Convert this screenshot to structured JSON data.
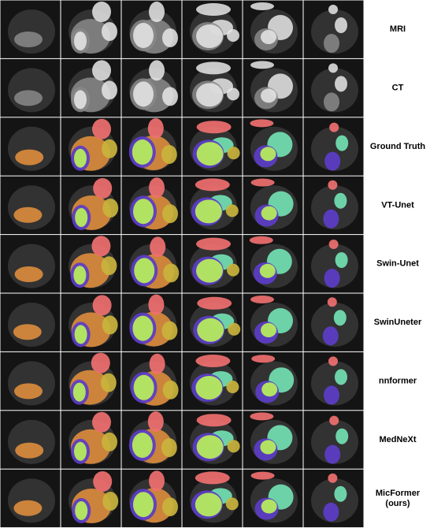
{
  "rows": [
    [
      "MRI"
    ],
    [
      "CT"
    ],
    [
      "Ground Truth"
    ],
    [
      "VT-Unet"
    ],
    [
      "Swin-Unet"
    ],
    [
      "SwinUneter"
    ],
    [
      "nnformer"
    ],
    [
      "MedNeXt"
    ],
    [
      "MicFormer",
      "(ours)"
    ]
  ]
}
